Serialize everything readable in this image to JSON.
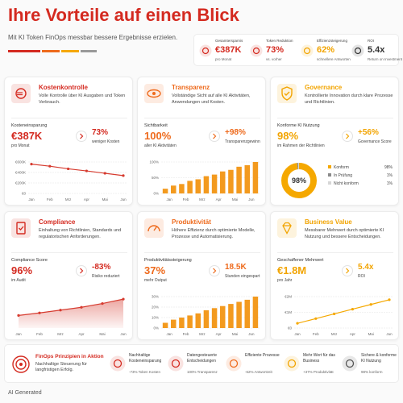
{
  "header": {
    "title": "Ihre Vorteile auf einen Blick",
    "subtitle": "Mit KI Token FinOps messbar bessere Ergebnisse erzielen."
  },
  "kpis": [
    {
      "label": "Gesamtersparnis",
      "value": "€387K",
      "sub": "pro Monat",
      "color": "#d42a20"
    },
    {
      "label": "Token Reduktion",
      "value": "73%",
      "sub": "vs. vorher",
      "color": "#d42a20"
    },
    {
      "label": "Effizienzsteigerung",
      "value": "62%",
      "sub": "schnellere Antworten",
      "color": "#f2a400"
    },
    {
      "label": "ROI",
      "value": "5.4x",
      "sub": "Return on Investment",
      "color": "#333333"
    }
  ],
  "cards": [
    {
      "title": "Kostenkontrolle",
      "description": "Volle Kontrolle über KI Ausgaben und Token Verbrauch.",
      "color": "#d42a20",
      "metric": {
        "label": "Kosteneinsparung",
        "value": "€387K",
        "sub": "pro Monat"
      },
      "secondary": {
        "value": "73%",
        "sub": "weniger Kosten"
      },
      "chart": {
        "type": "line",
        "color": "#d63b2f",
        "categories": [
          "Jan",
          "Feb",
          "Mrz",
          "Apr",
          "Mai",
          "Jun"
        ],
        "values": [
          560000,
          520000,
          470000,
          430000,
          385000,
          340000
        ],
        "ylim": [
          0,
          600000
        ],
        "yticks": [
          {
            "value": 0,
            "label": "€0"
          },
          {
            "value": 200000,
            "label": "€200K"
          },
          {
            "value": 400000,
            "label": "€400K"
          },
          {
            "value": 600000,
            "label": "€600K"
          }
        ],
        "grid": true
      }
    },
    {
      "title": "Transparenz",
      "description": "Vollständige Sicht auf alle KI Aktivitäten, Anwendungen und Kosten.",
      "color": "#ee6a1c",
      "metric": {
        "label": "Sichtbarkeit",
        "value": "100%",
        "sub": "aller KI Aktivitäten"
      },
      "secondary": {
        "value": "+98%",
        "sub": "Transparenzgewinn"
      },
      "chart": {
        "type": "bar",
        "color": "#f39a1e",
        "categories": [
          "Jan",
          null,
          "Feb",
          null,
          "Mrz",
          null,
          "Apr",
          null,
          "Mai",
          null,
          "Jun",
          null
        ],
        "values": [
          15,
          25,
          30,
          40,
          45,
          55,
          60,
          70,
          75,
          85,
          90,
          100
        ],
        "ylim": [
          0,
          100
        ],
        "yticks": [
          {
            "value": 0,
            "label": "0%"
          },
          {
            "value": 50,
            "label": "50%"
          },
          {
            "value": 100,
            "label": "100%"
          }
        ],
        "grid": true
      }
    },
    {
      "title": "Governance",
      "description": "Kontrollierte Innovation durch klare Prozesse und Richtlinien.",
      "color": "#f2a400",
      "metric": {
        "label": "Konforme KI Nutzung",
        "value": "98%",
        "sub": "im Rahmen der Richtlinien"
      },
      "secondary": {
        "value": "+56%",
        "sub": "Governance Score"
      },
      "chart": {
        "type": "donut",
        "center_label": "98%",
        "categories": [
          "Konform",
          "In Prüfung",
          "Nicht konform"
        ],
        "values": [
          98,
          1,
          1
        ],
        "value_labels": [
          "98%",
          "1%",
          "1%"
        ],
        "colors": [
          "#f5a800",
          "#8a8a8a",
          "#d6d6d6"
        ]
      }
    },
    {
      "title": "Compliance",
      "description": "Einhaltung von Richtlinien, Standards und regulatorischen Anforderungen.",
      "color": "#d42a20",
      "metric": {
        "label": "Compliance Score",
        "value": "96%",
        "sub": "im Audit"
      },
      "secondary": {
        "value": "-83%",
        "sub": "Risiko reduziert"
      },
      "chart": {
        "type": "area",
        "color": "#d63b2f",
        "categories": [
          "Jan",
          "Feb",
          "Mrz",
          "Apr",
          "Mai",
          "Jun"
        ],
        "values": [
          40,
          48,
          57,
          66,
          78,
          92
        ],
        "ylim": [
          0,
          100
        ]
      }
    },
    {
      "title": "Produktivität",
      "description": "Höhere Effizienz durch optimierte Modelle, Prozesse und Automatisierung.",
      "color": "#ee6a1c",
      "metric": {
        "label": "Produktivitätssteigerung",
        "value": "37%",
        "sub": "mehr Output"
      },
      "secondary": {
        "value": "18.5K",
        "sub": "Stunden eingespart"
      },
      "chart": {
        "type": "bar",
        "color": "#f39a1e",
        "categories": [
          "Jan",
          null,
          "Feb",
          null,
          "Mrz",
          null,
          "Apr",
          null,
          "Mai",
          null,
          "Jun",
          null
        ],
        "values": [
          5,
          8,
          10,
          12,
          14,
          17,
          19,
          21,
          23,
          25,
          27,
          30
        ],
        "ylim": [
          0,
          30
        ],
        "yticks": [
          {
            "value": 0,
            "label": "0%"
          },
          {
            "value": 10,
            "label": "10%"
          },
          {
            "value": 20,
            "label": "20%"
          },
          {
            "value": 30,
            "label": "30%"
          }
        ],
        "grid": true
      }
    },
    {
      "title": "Business Value",
      "description": "Messbarer Mehrwert durch optimierte KI Nutzung und bessere Entscheidungen.",
      "color": "#f2a400",
      "metric": {
        "label": "Geschaffener Mehrwert",
        "value": "€1.8M",
        "sub": "pro Jahr"
      },
      "secondary": {
        "value": "5.4x",
        "sub": "ROI"
      },
      "chart": {
        "type": "line",
        "color": "#f5a800",
        "categories": [
          "Jan",
          "Feb",
          "Mrz",
          "Apr",
          "Mai",
          "Jun"
        ],
        "values": [
          300000,
          600000,
          900000,
          1200000,
          1500000,
          1800000
        ],
        "ylim": [
          0,
          2000000
        ],
        "yticks": [
          {
            "value": 0,
            "label": "€0"
          },
          {
            "value": 1000000,
            "label": "€1M"
          },
          {
            "value": 2000000,
            "label": "€2M"
          }
        ],
        "grid": true
      }
    }
  ],
  "footer": {
    "title": "FinOps Prinzipien in Aktion",
    "subtitle": "Nachhaltige Steuerung für langfristigen Erfolg.",
    "items": [
      {
        "title": "Nachhaltige Kosteneinsparung",
        "sub": "-73% Token Kosten"
      },
      {
        "title": "Datengesteuerte Entscheidungen",
        "sub": "100% Transparenz"
      },
      {
        "title": "Effiziente Prozesse",
        "sub": "-62% Antwortzeit"
      },
      {
        "title": "Mehr Wert für das Business",
        "sub": "+37% Produktivität"
      },
      {
        "title": "Sichere & konforme KI Nutzung",
        "sub": "98% konform"
      }
    ]
  },
  "watermark": "AI Generated"
}
